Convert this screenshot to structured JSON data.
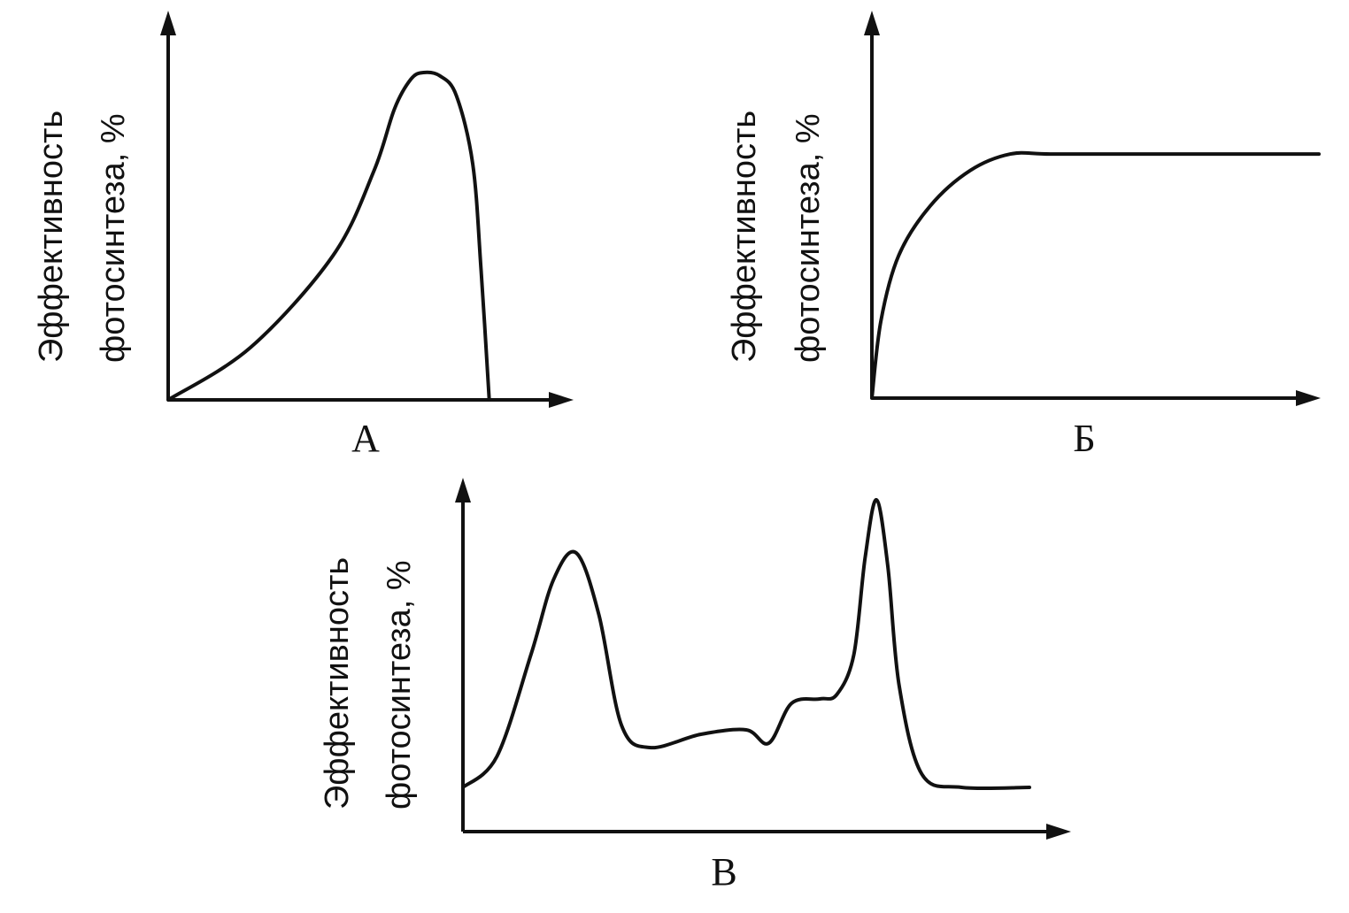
{
  "chart_data": [
    {
      "type": "line",
      "panel_label": "А",
      "ylabel": [
        "Эффективность",
        "фотосинтеза, %"
      ],
      "xlabel": "",
      "grid": false,
      "x_range": [
        0,
        100
      ],
      "y_range": [
        0,
        100
      ],
      "series": [
        {
          "points": [
            [
              0,
              0
            ],
            [
              20,
              16
            ],
            [
              40,
              44
            ],
            [
              50,
              70
            ],
            [
              55,
              89
            ],
            [
              59,
              98
            ],
            [
              62,
              100
            ],
            [
              66,
              99
            ],
            [
              70,
              93
            ],
            [
              74,
              72
            ],
            [
              76,
              40
            ],
            [
              78,
              0
            ]
          ]
        }
      ]
    },
    {
      "type": "line",
      "panel_label": "Б",
      "ylabel": [
        "Эффективность",
        "фотосинтеза, %"
      ],
      "xlabel": "",
      "grid": false,
      "x_range": [
        0,
        100
      ],
      "y_range": [
        0,
        100
      ],
      "series": [
        {
          "points": [
            [
              0,
              0
            ],
            [
              2,
              28
            ],
            [
              6,
              52
            ],
            [
              13,
              70
            ],
            [
              22,
              83
            ],
            [
              31,
              89
            ],
            [
              40,
              89
            ],
            [
              60,
              89
            ],
            [
              80,
              89
            ],
            [
              100,
              89
            ]
          ]
        }
      ]
    },
    {
      "type": "line",
      "panel_label": "В",
      "ylabel": [
        "Эффективность",
        "фотосинтеза, %"
      ],
      "xlabel": "",
      "grid": false,
      "x_range": [
        0,
        100
      ],
      "y_range": [
        0,
        100
      ],
      "series": [
        {
          "points": [
            [
              0,
              10
            ],
            [
              6,
              17
            ],
            [
              12,
              40
            ],
            [
              16,
              57
            ],
            [
              20,
              63
            ],
            [
              24,
              49
            ],
            [
              28,
              24
            ],
            [
              33,
              19
            ],
            [
              42,
              22
            ],
            [
              50,
              23
            ],
            [
              54,
              20
            ],
            [
              58,
              29
            ],
            [
              63,
              30
            ],
            [
              66,
              31
            ],
            [
              69,
              40
            ],
            [
              71,
              62
            ],
            [
              73,
              75
            ],
            [
              75,
              60
            ],
            [
              77,
              33
            ],
            [
              81,
              13
            ],
            [
              88,
              10
            ],
            [
              100,
              10
            ]
          ]
        }
      ]
    }
  ]
}
